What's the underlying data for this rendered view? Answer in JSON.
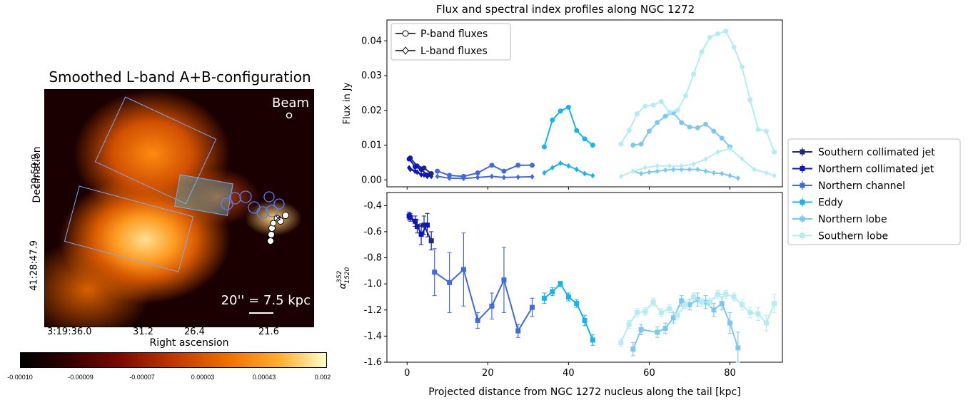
{
  "radio_map": {
    "title": "Smoothed L-band A+B-configuration",
    "beam_label": "Beam",
    "scale_label": "20'' = 7.5 kpc",
    "xlabel": "Right ascension",
    "ylabel": "Declination",
    "xticks": [
      "3:19:36.0",
      "31.2",
      "26.4",
      "21.6"
    ],
    "yticks": [
      "29:59.9",
      "41:28:47.9"
    ],
    "colorbar_ticks": [
      "-0.00010",
      "-0.00009",
      "-0.00007",
      "0.00003",
      "0.00043",
      "0.002"
    ],
    "colors": {
      "box_outline": "#7aa6ff",
      "background": "#1a0000",
      "peak": "#ffffc8"
    }
  },
  "chart_data": [
    {
      "type": "line",
      "title": "Flux and spectral index profiles along NGC 1272",
      "xlabel": "",
      "ylabel": "Flux in Jy",
      "xlim": [
        -5,
        93
      ],
      "ylim": [
        -0.002,
        0.046
      ],
      "yticks": [
        "0.00",
        "0.01",
        "0.02",
        "0.03",
        "0.04"
      ],
      "legend": [
        "P-band fluxes",
        "L-band fluxes"
      ],
      "legend_position": "top-left",
      "series": [
        {
          "name": "Southern collimated jet",
          "band": "P",
          "color": "#1b2a7a",
          "x": [
            0.8,
            2.5,
            4.2,
            6.0
          ],
          "values": [
            0.0063,
            0.004,
            0.0034,
            0.0018
          ]
        },
        {
          "name": "Southern collimated jet",
          "band": "L",
          "color": "#1b2a7a",
          "x": [
            0.8,
            2.5,
            4.2,
            6.0
          ],
          "values": [
            0.003,
            0.0022,
            0.0014,
            0.001
          ]
        },
        {
          "name": "Northern collimated jet",
          "band": "P",
          "color": "#0a14c8",
          "x": [
            0.5,
            2.0,
            3.5,
            5.0
          ],
          "values": [
            0.006,
            0.0038,
            0.003,
            0.0014
          ]
        },
        {
          "name": "Northern collimated jet",
          "band": "L",
          "color": "#0a14c8",
          "x": [
            0.5,
            2.0,
            3.5,
            5.0
          ],
          "values": [
            0.0035,
            0.0025,
            0.0015,
            0.001
          ]
        },
        {
          "name": "Northern channel",
          "band": "P",
          "color": "#4169e1",
          "x": [
            7.5,
            10.5,
            14,
            17.5,
            21,
            24,
            27.5,
            31
          ],
          "values": [
            0.0025,
            0.0013,
            0.001,
            0.002,
            0.0042,
            0.0025,
            0.0042,
            0.0042
          ]
        },
        {
          "name": "Northern channel",
          "band": "L",
          "color": "#4169e1",
          "x": [
            7.5,
            10.5,
            14,
            17.5,
            21,
            24,
            27.5,
            31
          ],
          "values": [
            0.001,
            0.0005,
            0.0004,
            0.0007,
            0.001,
            0.0007,
            0.0008,
            0.0009
          ]
        },
        {
          "name": "Eddy",
          "band": "P",
          "color": "#16b4f0",
          "x": [
            34,
            36,
            38,
            40,
            42,
            44,
            46
          ],
          "values": [
            0.0095,
            0.0172,
            0.0198,
            0.0209,
            0.0142,
            0.0118,
            0.01
          ]
        },
        {
          "name": "Eddy",
          "band": "L",
          "color": "#16b4f0",
          "x": [
            34,
            36,
            38,
            40,
            42,
            44,
            46
          ],
          "values": [
            0.002,
            0.0035,
            0.0048,
            0.004,
            0.003,
            0.0018,
            0.0012
          ]
        },
        {
          "name": "Northern lobe",
          "band": "P",
          "color": "#7ec8f0",
          "x": [
            56,
            58,
            60,
            62,
            64,
            66,
            68,
            70,
            72,
            74,
            76,
            78,
            80
          ],
          "values": [
            0.01,
            0.0103,
            0.014,
            0.0165,
            0.0183,
            0.0193,
            0.0165,
            0.0152,
            0.015,
            0.016,
            0.014,
            0.012,
            0.0095
          ]
        },
        {
          "name": "Northern lobe",
          "band": "L",
          "color": "#7ec8f0",
          "x": [
            56,
            58,
            60,
            62,
            64,
            66,
            68,
            70,
            72,
            74,
            76,
            78,
            80,
            82
          ],
          "values": [
            0.0025,
            0.0018,
            0.0022,
            0.0025,
            0.0028,
            0.003,
            0.003,
            0.003,
            0.003,
            0.0025,
            0.002,
            0.0018,
            0.0012,
            0.0005
          ]
        },
        {
          "name": "Southern lobe",
          "band": "P",
          "color": "#b4ecf4",
          "x": [
            53,
            55,
            57,
            59,
            61,
            63,
            65,
            67,
            69,
            71,
            73,
            75,
            77,
            79,
            81,
            83,
            85,
            87,
            89,
            91
          ],
          "values": [
            0.0103,
            0.0142,
            0.019,
            0.0212,
            0.0215,
            0.0225,
            0.0195,
            0.02,
            0.0242,
            0.0304,
            0.0368,
            0.041,
            0.042,
            0.0428,
            0.0382,
            0.0325,
            0.023,
            0.0145,
            0.014,
            0.008
          ]
        },
        {
          "name": "Southern lobe",
          "band": "L",
          "color": "#b4ecf4",
          "x": [
            53,
            56,
            59,
            62,
            65,
            68,
            71,
            74,
            77,
            80,
            83,
            86,
            89,
            91
          ],
          "values": [
            0.001,
            0.0025,
            0.0035,
            0.004,
            0.004,
            0.004,
            0.0045,
            0.006,
            0.008,
            0.009,
            0.006,
            0.003,
            0.002,
            0.0012
          ]
        }
      ]
    },
    {
      "type": "line",
      "xlabel": "Projected distance from NGC 1272 nucleus along the tail [kpc]",
      "ylabel": "α_1520^352",
      "xlim": [
        -5,
        93
      ],
      "ylim": [
        -1.6,
        -0.3
      ],
      "xticks": [
        "0",
        "20",
        "40",
        "60",
        "80"
      ],
      "yticks": [
        "-0.4",
        "-0.6",
        "-0.8",
        "-1.0",
        "-1.2",
        "-1.4",
        "-1.6"
      ],
      "legend": [
        "Southern collimated jet",
        "Northern collimated jet",
        "Northern channel",
        "Eddy",
        "Northern lobe",
        "Southern lobe"
      ],
      "legend_position": "outside-right",
      "series": [
        {
          "name": "Southern collimated jet",
          "color": "#1b2a7a",
          "x": [
            0.8,
            2.5,
            4.2,
            6.0
          ],
          "values": [
            -0.49,
            -0.56,
            -0.55,
            -0.67
          ],
          "err": [
            0.03,
            0.05,
            0.07,
            0.07
          ]
        },
        {
          "name": "Northern collimated jet",
          "color": "#0a14c8",
          "x": [
            0.5,
            2.0,
            3.5,
            5.0
          ],
          "values": [
            -0.48,
            -0.52,
            -0.62,
            -0.55
          ],
          "err": [
            0.03,
            0.04,
            0.08,
            0.09
          ]
        },
        {
          "name": "Northern channel",
          "color": "#4169e1",
          "x": [
            6.8,
            10.5,
            14,
            17.5,
            21,
            24,
            27.5,
            31
          ],
          "values": [
            -0.91,
            -0.99,
            -0.89,
            -1.28,
            -1.17,
            -0.97,
            -1.36,
            -1.18
          ],
          "err": [
            0.18,
            0.23,
            0.28,
            0.06,
            0.1,
            0.25,
            0.05,
            0.07
          ]
        },
        {
          "name": "Eddy",
          "color": "#16b4f0",
          "x": [
            34,
            36,
            38,
            40,
            42,
            44,
            46
          ],
          "values": [
            -1.11,
            -1.06,
            -1.0,
            -1.1,
            -1.15,
            -1.28,
            -1.43
          ],
          "err": [
            0.04,
            0.03,
            0.02,
            0.03,
            0.03,
            0.04,
            0.04
          ]
        },
        {
          "name": "Northern lobe",
          "color": "#7ec8f0",
          "x": [
            56,
            58,
            62,
            64,
            66,
            68,
            70,
            72,
            74,
            76,
            78,
            80,
            82
          ],
          "values": [
            -1.5,
            -1.35,
            -1.37,
            -1.34,
            -1.26,
            -1.13,
            -1.16,
            -1.12,
            -1.14,
            -1.2,
            -1.15,
            -1.3,
            -1.49
          ],
          "err": [
            0.05,
            0.04,
            0.04,
            0.04,
            0.04,
            0.04,
            0.04,
            0.05,
            0.05,
            0.05,
            0.05,
            0.08,
            0.12
          ]
        },
        {
          "name": "Southern lobe",
          "color": "#b4ecf4",
          "x": [
            53,
            55,
            57,
            59,
            61,
            63,
            65,
            67,
            69,
            71,
            73,
            75,
            77,
            79,
            81,
            83,
            85,
            87,
            89,
            91
          ],
          "values": [
            -1.45,
            -1.31,
            -1.22,
            -1.21,
            -1.14,
            -1.22,
            -1.19,
            -1.24,
            -1.16,
            -1.1,
            -1.14,
            -1.14,
            -1.08,
            -1.08,
            -1.1,
            -1.16,
            -1.22,
            -1.23,
            -1.3,
            -1.15
          ],
          "err": [
            0.03,
            0.03,
            0.03,
            0.03,
            0.03,
            0.03,
            0.03,
            0.03,
            0.03,
            0.03,
            0.03,
            0.03,
            0.03,
            0.03,
            0.03,
            0.04,
            0.04,
            0.05,
            0.06,
            0.07
          ]
        }
      ]
    }
  ]
}
